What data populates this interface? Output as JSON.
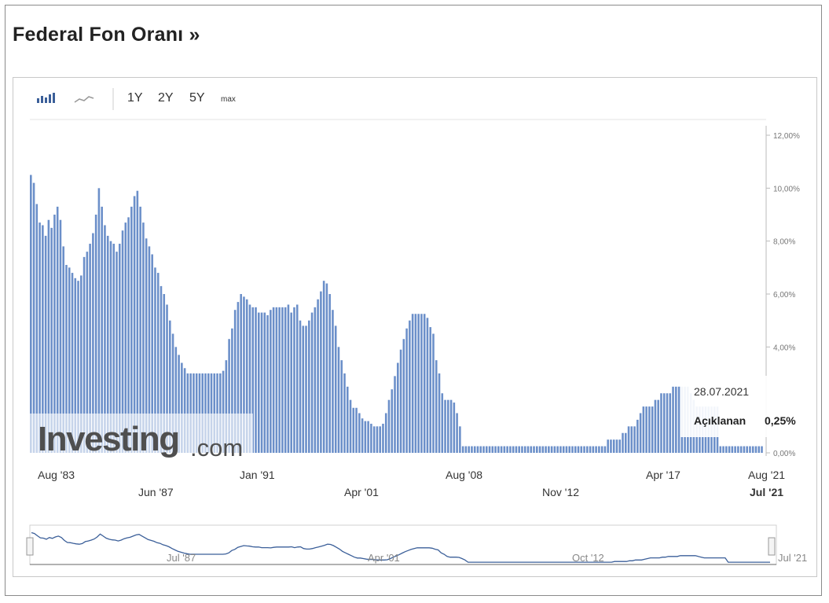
{
  "title": "Federal Fon Oranı »",
  "toolbar": {
    "ranges": [
      "1Y",
      "2Y",
      "5Y",
      "max"
    ]
  },
  "watermark": {
    "brand": "Investing",
    "suffix": ".com"
  },
  "tooltip": {
    "date": "28.07.2021",
    "label": "Açıklanan",
    "value": "0,25%"
  },
  "colors": {
    "bar": "#6b8fc9",
    "bar_stroke": "#4a6fae",
    "line": "#3b5f99"
  },
  "chart_data": {
    "type": "bar",
    "title": "Federal Fon Oranı",
    "y_ticks": [
      "0,00%",
      "4,00%",
      "6,00%",
      "8,00%",
      "10,00%",
      "12,00%"
    ],
    "y_tick_values": [
      0,
      4,
      6,
      8,
      10,
      12
    ],
    "ylim": [
      0,
      12
    ],
    "x_labels_row1": [
      "Aug '83",
      "Jan '91",
      "Aug '08",
      "Apr '17",
      "Aug '21"
    ],
    "x_labels_row2": [
      "Jun '87",
      "Apr '01",
      "Nov '12",
      "Jul '21"
    ],
    "navigator_labels": [
      "Jul '87",
      "Apr '01",
      "Oct '12",
      "Jul '21"
    ],
    "start": "1983-08",
    "end": "2021-07",
    "series": [
      {
        "values": [
          10.5,
          10.2,
          9.4,
          8.7,
          8.6,
          8.2,
          8.8,
          8.5,
          9.0,
          9.3,
          8.8,
          7.8,
          7.1,
          7.0,
          6.8,
          6.6,
          6.5,
          6.7,
          7.4,
          7.6,
          7.9,
          8.3,
          9.0,
          10.0,
          9.3,
          8.6,
          8.2,
          8.0,
          7.9,
          7.6,
          7.9,
          8.4,
          8.7,
          8.9,
          9.3,
          9.7,
          9.9,
          9.3,
          8.7,
          8.1,
          7.8,
          7.5,
          7.0,
          6.8,
          6.3,
          6.0,
          5.6,
          5.0,
          4.5,
          4.0,
          3.7,
          3.4,
          3.2,
          3.0,
          3.0,
          3.0,
          3.0,
          3.0,
          3.0,
          3.0,
          3.0,
          3.0,
          3.0,
          3.0,
          3.0,
          3.1,
          3.5,
          4.3,
          4.7,
          5.4,
          5.7,
          6.0,
          5.9,
          5.8,
          5.6,
          5.5,
          5.5,
          5.3,
          5.3,
          5.3,
          5.2,
          5.4,
          5.5,
          5.5,
          5.5,
          5.5,
          5.5,
          5.6,
          5.3,
          5.5,
          5.6,
          5.0,
          4.8,
          4.8,
          5.0,
          5.3,
          5.5,
          5.8,
          6.1,
          6.5,
          6.4,
          6.0,
          5.4,
          4.8,
          4.0,
          3.5,
          3.0,
          2.5,
          2.0,
          1.7,
          1.7,
          1.5,
          1.3,
          1.2,
          1.2,
          1.1,
          1.0,
          1.0,
          1.0,
          1.1,
          1.5,
          2.0,
          2.4,
          2.9,
          3.4,
          3.9,
          4.3,
          4.7,
          5.0,
          5.25,
          5.25,
          5.25,
          5.25,
          5.25,
          5.1,
          4.75,
          4.5,
          3.5,
          3.0,
          2.25,
          2.0,
          2.0,
          2.0,
          1.9,
          1.5,
          1.0,
          0.25,
          0.25,
          0.25,
          0.25,
          0.25,
          0.25,
          0.25,
          0.25,
          0.25,
          0.25,
          0.25,
          0.25,
          0.25,
          0.25,
          0.25,
          0.25,
          0.25,
          0.25,
          0.25,
          0.25,
          0.25,
          0.25,
          0.25,
          0.25,
          0.25,
          0.25,
          0.25,
          0.25,
          0.25,
          0.25,
          0.25,
          0.25,
          0.25,
          0.25,
          0.25,
          0.25,
          0.25,
          0.25,
          0.25,
          0.25,
          0.25,
          0.25,
          0.25,
          0.25,
          0.25,
          0.25,
          0.25,
          0.25,
          0.25,
          0.5,
          0.5,
          0.5,
          0.5,
          0.5,
          0.75,
          0.75,
          1.0,
          1.0,
          1.0,
          1.25,
          1.5,
          1.75,
          1.75,
          1.75,
          1.75,
          2.0,
          2.0,
          2.25,
          2.25,
          2.25,
          2.25,
          2.5,
          2.5,
          2.5,
          2.5,
          2.5,
          2.5,
          2.25,
          2.0,
          1.75,
          1.75,
          1.75,
          1.75,
          1.75,
          1.75,
          1.75,
          1.75,
          0.25,
          0.25,
          0.25,
          0.25,
          0.25,
          0.25,
          0.25,
          0.25,
          0.25,
          0.25,
          0.25,
          0.25,
          0.25,
          0.25,
          0.25
        ]
      }
    ]
  }
}
